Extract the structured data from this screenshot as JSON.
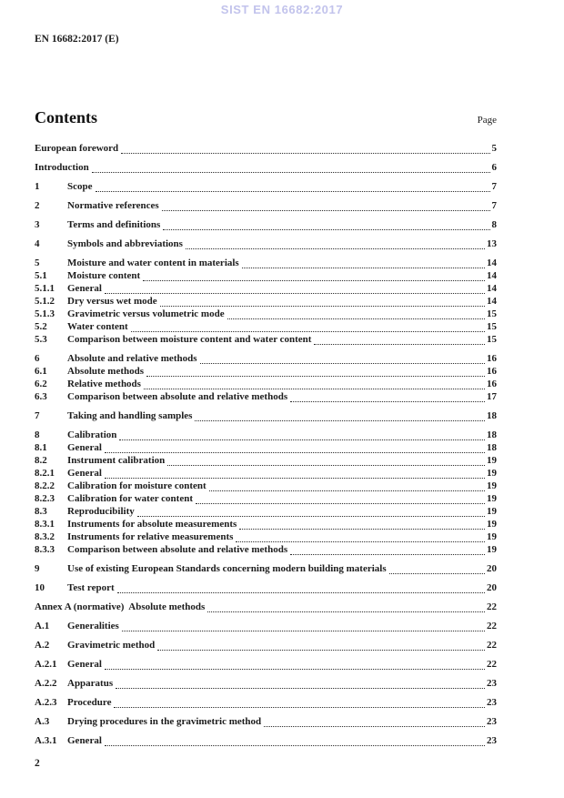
{
  "watermark": "SIST EN 16682:2017",
  "doc_ref": "EN 16682:2017 (E)",
  "contents": {
    "heading": "Contents",
    "page_label": "Page",
    "entries": [
      {
        "num": "",
        "title": "European foreword",
        "page": "5",
        "gap": true
      },
      {
        "num": "",
        "title": "Introduction",
        "page": "6",
        "gap": true
      },
      {
        "num": "1",
        "title": "Scope",
        "page": "7",
        "gap": true
      },
      {
        "num": "2",
        "title": "Normative references",
        "page": "7",
        "gap": true
      },
      {
        "num": "3",
        "title": "Terms and definitions",
        "page": "8",
        "gap": true
      },
      {
        "num": "4",
        "title": "Symbols and abbreviations",
        "page": "13",
        "gap": true
      },
      {
        "num": "5",
        "title": "Moisture and water content in materials",
        "page": "14",
        "gap": true
      },
      {
        "num": "5.1",
        "title": "Moisture content",
        "page": "14",
        "gap": false
      },
      {
        "num": "5.1.1",
        "title": "General",
        "page": "14",
        "gap": false
      },
      {
        "num": "5.1.2",
        "title": "Dry versus wet mode",
        "page": "14",
        "gap": false
      },
      {
        "num": "5.1.3",
        "title": "Gravimetric versus volumetric mode",
        "page": "15",
        "gap": false
      },
      {
        "num": "5.2",
        "title": "Water content",
        "page": "15",
        "gap": false
      },
      {
        "num": "5.3",
        "title": "Comparison between moisture content and water content",
        "page": "15",
        "gap": false
      },
      {
        "num": "6",
        "title": "Absolute and relative methods",
        "page": "16",
        "gap": true
      },
      {
        "num": "6.1",
        "title": "Absolute methods",
        "page": "16",
        "gap": false
      },
      {
        "num": "6.2",
        "title": "Relative methods",
        "page": "16",
        "gap": false
      },
      {
        "num": "6.3",
        "title": "Comparison between absolute and relative methods",
        "page": "17",
        "gap": false
      },
      {
        "num": "7",
        "title": "Taking and handling samples",
        "page": "18",
        "gap": true
      },
      {
        "num": "8",
        "title": "Calibration",
        "page": "18",
        "gap": true
      },
      {
        "num": "8.1",
        "title": "General",
        "page": "18",
        "gap": false
      },
      {
        "num": "8.2",
        "title": "Instrument calibration",
        "page": "19",
        "gap": false
      },
      {
        "num": "8.2.1",
        "title": "General",
        "page": "19",
        "gap": false
      },
      {
        "num": "8.2.2",
        "title": "Calibration for moisture content",
        "page": "19",
        "gap": false
      },
      {
        "num": "8.2.3",
        "title": "Calibration for water content",
        "page": "19",
        "gap": false
      },
      {
        "num": "8.3",
        "title": "Reproducibility",
        "page": "19",
        "gap": false
      },
      {
        "num": "8.3.1",
        "title": "Instruments for absolute measurements",
        "page": "19",
        "gap": false
      },
      {
        "num": "8.3.2",
        "title": "Instruments for relative measurements",
        "page": "19",
        "gap": false
      },
      {
        "num": "8.3.3",
        "title": "Comparison between absolute and relative methods",
        "page": "19",
        "gap": false
      },
      {
        "num": "9",
        "title": "Use of existing European Standards concerning modern building materials",
        "page": "20",
        "gap": true
      },
      {
        "num": "10",
        "title": "Test report",
        "page": "20",
        "gap": true
      },
      {
        "num": "",
        "title": "Annex A (normative)  Absolute methods",
        "page": "22",
        "gap": true
      },
      {
        "num": "A.1",
        "title": "Generalities",
        "page": "22",
        "gap": true
      },
      {
        "num": "A.2",
        "title": "Gravimetric method",
        "page": "22",
        "gap": true
      },
      {
        "num": "A.2.1",
        "title": "General",
        "page": "22",
        "gap": true
      },
      {
        "num": "A.2.2",
        "title": "Apparatus",
        "page": "23",
        "gap": true
      },
      {
        "num": "A.2.3",
        "title": "Procedure",
        "page": "23",
        "gap": true
      },
      {
        "num": "A.3",
        "title": "Drying procedures in the gravimetric method",
        "page": "23",
        "gap": true
      },
      {
        "num": "A.3.1",
        "title": "General",
        "page": "23",
        "gap": true
      }
    ]
  },
  "footer": {
    "page_number": "2"
  },
  "colors": {
    "watermark": "#c2c3ec",
    "text": "#1c1c1c",
    "background": "#ffffff"
  }
}
